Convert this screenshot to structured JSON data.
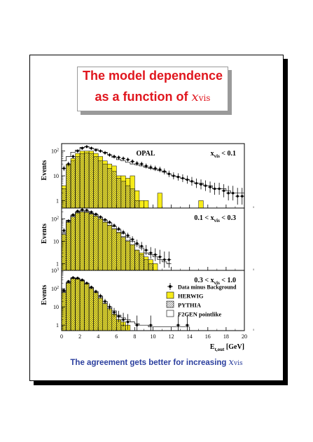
{
  "title": {
    "line1": "The model dependence",
    "line2_prefix": "as a function of ",
    "line2_var": "x",
    "line2_sub": "vis"
  },
  "footer": {
    "prefix": "The agreement gets better for increasing ",
    "var": "x",
    "sub": "vis"
  },
  "colors": {
    "title": "#e0161e",
    "footer": "#2b3f9e",
    "herwig": "#f7ec1a"
  },
  "chart_data": {
    "type": "bar",
    "experiment_label": "OPAL",
    "x_axis": {
      "label_main": "E",
      "label_sub": "t,out",
      "unit": "[GeV]",
      "range": [
        0,
        20
      ],
      "ticks": [
        0,
        2,
        4,
        6,
        8,
        10,
        12,
        14,
        16,
        18,
        20
      ]
    },
    "y_axis": {
      "label": "Events",
      "scale": "log"
    },
    "bin_width": 0.5,
    "legend": {
      "position": "lower-right of bottom panel",
      "entries": [
        "Data minus Background",
        "HERWIG",
        "PYTHIA",
        "F2GEN pointlike"
      ]
    },
    "panels": [
      {
        "label_prefix": "x",
        "label_sub": "vis",
        "label_suffix": " < 0.1",
        "y_range": [
          0.5,
          200
        ],
        "y_ticks": [
          {
            "v": 1,
            "label": "1"
          },
          {
            "v": 10,
            "label": "10"
          },
          {
            "v": 100,
            "label": "10 2"
          }
        ],
        "data": [
          20,
          30,
          60,
          100,
          130,
          150,
          130,
          110,
          100,
          85,
          70,
          60,
          55,
          50,
          45,
          38,
          32,
          30,
          25,
          22,
          20,
          18,
          15,
          12,
          10,
          9,
          8,
          7,
          6,
          5,
          4.5,
          4,
          3.5,
          3,
          3,
          2.5,
          2,
          2,
          1.5,
          1.5
        ],
        "herwig": [
          4,
          30,
          50,
          80,
          100,
          100,
          100,
          80,
          60,
          40,
          30,
          25,
          10,
          10,
          8,
          10,
          2.5,
          1,
          1,
          0,
          0,
          2,
          0,
          0,
          0,
          0,
          0,
          0,
          0,
          0,
          1,
          0,
          0,
          0,
          0,
          0,
          0,
          0,
          0,
          0
        ],
        "pythia": [
          3,
          28,
          40,
          60,
          80,
          85,
          80,
          60,
          40,
          30,
          20,
          15,
          8,
          6,
          4,
          3,
          1,
          0,
          0,
          0,
          0,
          0,
          0,
          0,
          0,
          0,
          0,
          0,
          0,
          0,
          0,
          0,
          0,
          0,
          0,
          0,
          0,
          0,
          0,
          0
        ],
        "f2gen": [
          40,
          60,
          90,
          110,
          140,
          150,
          130,
          120,
          100,
          90,
          70,
          55,
          45,
          40,
          35,
          30,
          28,
          25,
          22,
          20,
          18,
          16,
          14,
          12,
          10,
          9,
          8,
          7,
          6,
          5,
          5,
          4,
          4,
          3,
          3,
          3,
          2.5,
          2,
          2,
          2
        ]
      },
      {
        "label_prefix": "0.1 < x",
        "label_sub": "vis",
        "label_suffix": " < 0.3",
        "y_range": [
          0.5,
          300
        ],
        "y_ticks": [
          {
            "v": 1,
            "label": "1"
          },
          {
            "v": 10,
            "label": "10"
          },
          {
            "v": 100,
            "label": "10 2"
          }
        ],
        "data": [
          30,
          80,
          150,
          220,
          250,
          240,
          200,
          160,
          120,
          90,
          70,
          50,
          35,
          25,
          18,
          12,
          8,
          6,
          4,
          3,
          2.5,
          2,
          1.5,
          1.5
        ],
        "herwig": [
          20,
          70,
          120,
          180,
          200,
          190,
          160,
          130,
          100,
          70,
          50,
          35,
          25,
          15,
          10,
          7,
          4,
          3,
          2,
          1.5,
          1,
          0,
          0,
          0
        ],
        "pythia": [
          22,
          75,
          130,
          190,
          210,
          200,
          170,
          135,
          100,
          72,
          52,
          36,
          24,
          16,
          11,
          7,
          4,
          2.5,
          1.5,
          1,
          0,
          0,
          0,
          0
        ],
        "f2gen": [
          25,
          85,
          140,
          200,
          230,
          220,
          180,
          150,
          115,
          85,
          65,
          45,
          32,
          22,
          15,
          10,
          7,
          5,
          3,
          2.5,
          2,
          1.5,
          1.2,
          1
        ]
      },
      {
        "label_prefix": "0.3 < x",
        "label_sub": "vis",
        "label_suffix": " < 1.0",
        "y_range": [
          0.5,
          1000
        ],
        "y_ticks": [
          {
            "v": 1,
            "label": "1"
          },
          {
            "v": 10,
            "label": "10"
          },
          {
            "v": 100,
            "label": "10 2"
          },
          {
            "v": 1000,
            "label": "10 3"
          }
        ],
        "data": [
          80,
          250,
          400,
          380,
          300,
          200,
          120,
          70,
          40,
          20,
          10,
          5,
          3,
          2,
          1.5,
          0,
          1,
          0,
          0,
          1,
          0,
          0,
          0,
          0,
          0,
          1,
          0,
          1
        ],
        "herwig": [
          60,
          200,
          350,
          330,
          260,
          180,
          100,
          60,
          30,
          15,
          8,
          4,
          2,
          1.5,
          1,
          0,
          0,
          0,
          0,
          0,
          0,
          0,
          0,
          0,
          0,
          0,
          0,
          0
        ],
        "pythia": [
          65,
          210,
          360,
          340,
          270,
          185,
          105,
          62,
          32,
          16,
          8,
          4,
          2,
          1,
          0,
          0,
          0,
          0,
          0,
          0,
          0,
          0,
          0,
          0,
          0,
          0,
          0,
          0
        ],
        "f2gen": [
          70,
          220,
          380,
          360,
          290,
          200,
          115,
          70,
          38,
          20,
          10,
          6,
          3.5,
          2.5,
          2,
          1.5,
          1.2,
          1,
          1,
          0.8,
          0.8,
          0.8,
          0.8,
          0.8,
          0.8,
          0.8,
          0.8,
          0.8
        ]
      }
    ]
  }
}
